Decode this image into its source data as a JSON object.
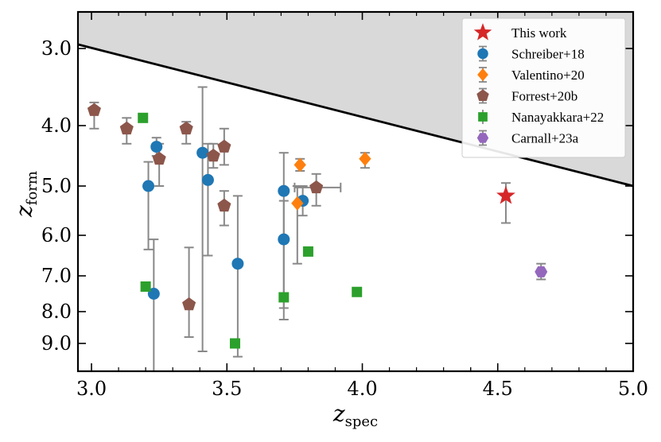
{
  "chart_data": {
    "type": "scatter",
    "title": "",
    "xlabel": {
      "main": "z",
      "sub": "spec"
    },
    "ylabel": {
      "main": "z",
      "sub": "form"
    },
    "xlim": [
      2.95,
      5.0
    ],
    "ylim": [
      2.55,
      10.05
    ],
    "y_scale": "age-mapped (non-linear)",
    "y_axis_inverted": true,
    "y_ticks": [
      {
        "label": "3.0",
        "value": 3.0
      },
      {
        "label": "4.0",
        "value": 4.0
      },
      {
        "label": "5.0",
        "value": 5.0
      },
      {
        "label": "6.0",
        "value": 6.0
      },
      {
        "label": "7.0",
        "value": 7.0
      },
      {
        "label": "8.0",
        "value": 8.0
      },
      {
        "label": "9.0",
        "value": 9.0
      }
    ],
    "x_ticks": [
      {
        "label": "3.0",
        "value": 3.0
      },
      {
        "label": "3.5",
        "value": 3.5
      },
      {
        "label": "4.0",
        "value": 4.0
      },
      {
        "label": "4.5",
        "value": 4.5
      },
      {
        "label": "5.0",
        "value": 5.0
      }
    ],
    "grid": false,
    "legend_position": "top-right",
    "forbidden_region": {
      "boundary_x": [
        2.95,
        5.0
      ],
      "boundary_y": [
        2.95,
        5.0
      ],
      "fill": "#d9d9d9"
    },
    "series": [
      {
        "name": "This work",
        "marker": "star",
        "color": "#d62728",
        "points": [
          {
            "x": 4.53,
            "y": 5.2,
            "ylo": 4.95,
            "yhi": 5.75
          }
        ]
      },
      {
        "name": "Schreiber+18",
        "marker": "circle",
        "color": "#1f77b4",
        "points": [
          {
            "x": 3.21,
            "y": 5.0,
            "ylo": 4.6,
            "yhi": 6.35
          },
          {
            "x": 3.23,
            "y": 7.5,
            "ylo": 6.1,
            "yhi": 10.5
          },
          {
            "x": 3.24,
            "y": 4.35,
            "ylo": 4.2,
            "yhi": 4.5
          },
          {
            "x": 3.41,
            "y": 4.45,
            "ylo": 3.5,
            "yhi": 9.3
          },
          {
            "x": 3.43,
            "y": 4.9,
            "ylo": 4.3,
            "yhi": 6.5
          },
          {
            "x": 3.54,
            "y": 6.7,
            "ylo": 5.2,
            "yhi": 9.5
          },
          {
            "x": 3.71,
            "y": 5.1,
            "ylo": 4.45,
            "yhi": 7.9
          },
          {
            "x": 3.71,
            "y": 6.1,
            "ylo": 5.3,
            "yhi": 8.25
          },
          {
            "x": 3.78,
            "y": 5.3,
            "ylo": 5.0,
            "yhi": 5.6
          }
        ]
      },
      {
        "name": "Valentino+20",
        "marker": "diamond",
        "color": "#ff7f0e",
        "points": [
          {
            "x": 3.76,
            "y": 5.35,
            "ylo": 5.0,
            "yhi": 6.7
          },
          {
            "x": 3.77,
            "y": 4.65,
            "ylo": 4.55,
            "yhi": 4.75
          },
          {
            "x": 4.01,
            "y": 4.55,
            "ylo": 4.45,
            "yhi": 4.7
          }
        ]
      },
      {
        "name": "Forrest+20b",
        "marker": "pentagon",
        "color": "#8c564b",
        "points": [
          {
            "x": 3.01,
            "y": 3.8,
            "ylo": 3.7,
            "yhi": 4.05
          },
          {
            "x": 3.13,
            "y": 4.05,
            "ylo": 3.9,
            "yhi": 4.3
          },
          {
            "x": 3.25,
            "y": 4.55,
            "ylo": 4.3,
            "yhi": 5.0
          },
          {
            "x": 3.35,
            "y": 4.05,
            "ylo": 3.95,
            "yhi": 4.3
          },
          {
            "x": 3.36,
            "y": 7.8,
            "ylo": 6.3,
            "yhi": 8.8
          },
          {
            "x": 3.45,
            "y": 4.5,
            "ylo": 4.3,
            "yhi": 4.7
          },
          {
            "x": 3.49,
            "y": 4.35,
            "ylo": 4.05,
            "yhi": 4.65
          },
          {
            "x": 3.49,
            "y": 5.4,
            "ylo": 5.1,
            "yhi": 5.8
          },
          {
            "x": 3.83,
            "y": 5.03,
            "ylo": 4.8,
            "yhi": 5.4,
            "xlo": 3.75,
            "xhi": 3.92
          }
        ]
      },
      {
        "name": "Nanayakkara+22",
        "marker": "square",
        "color": "#2ca02c",
        "points": [
          {
            "x": 3.19,
            "y": 3.9
          },
          {
            "x": 3.2,
            "y": 7.3
          },
          {
            "x": 3.53,
            "y": 9.0
          },
          {
            "x": 3.71,
            "y": 7.6
          },
          {
            "x": 3.8,
            "y": 6.4
          },
          {
            "x": 3.98,
            "y": 7.45
          }
        ]
      },
      {
        "name": "Carnall+23a",
        "marker": "hexagon",
        "color": "#9467bd",
        "points": [
          {
            "x": 4.66,
            "y": 6.9,
            "ylo": 6.7,
            "yhi": 7.1
          }
        ]
      }
    ]
  }
}
